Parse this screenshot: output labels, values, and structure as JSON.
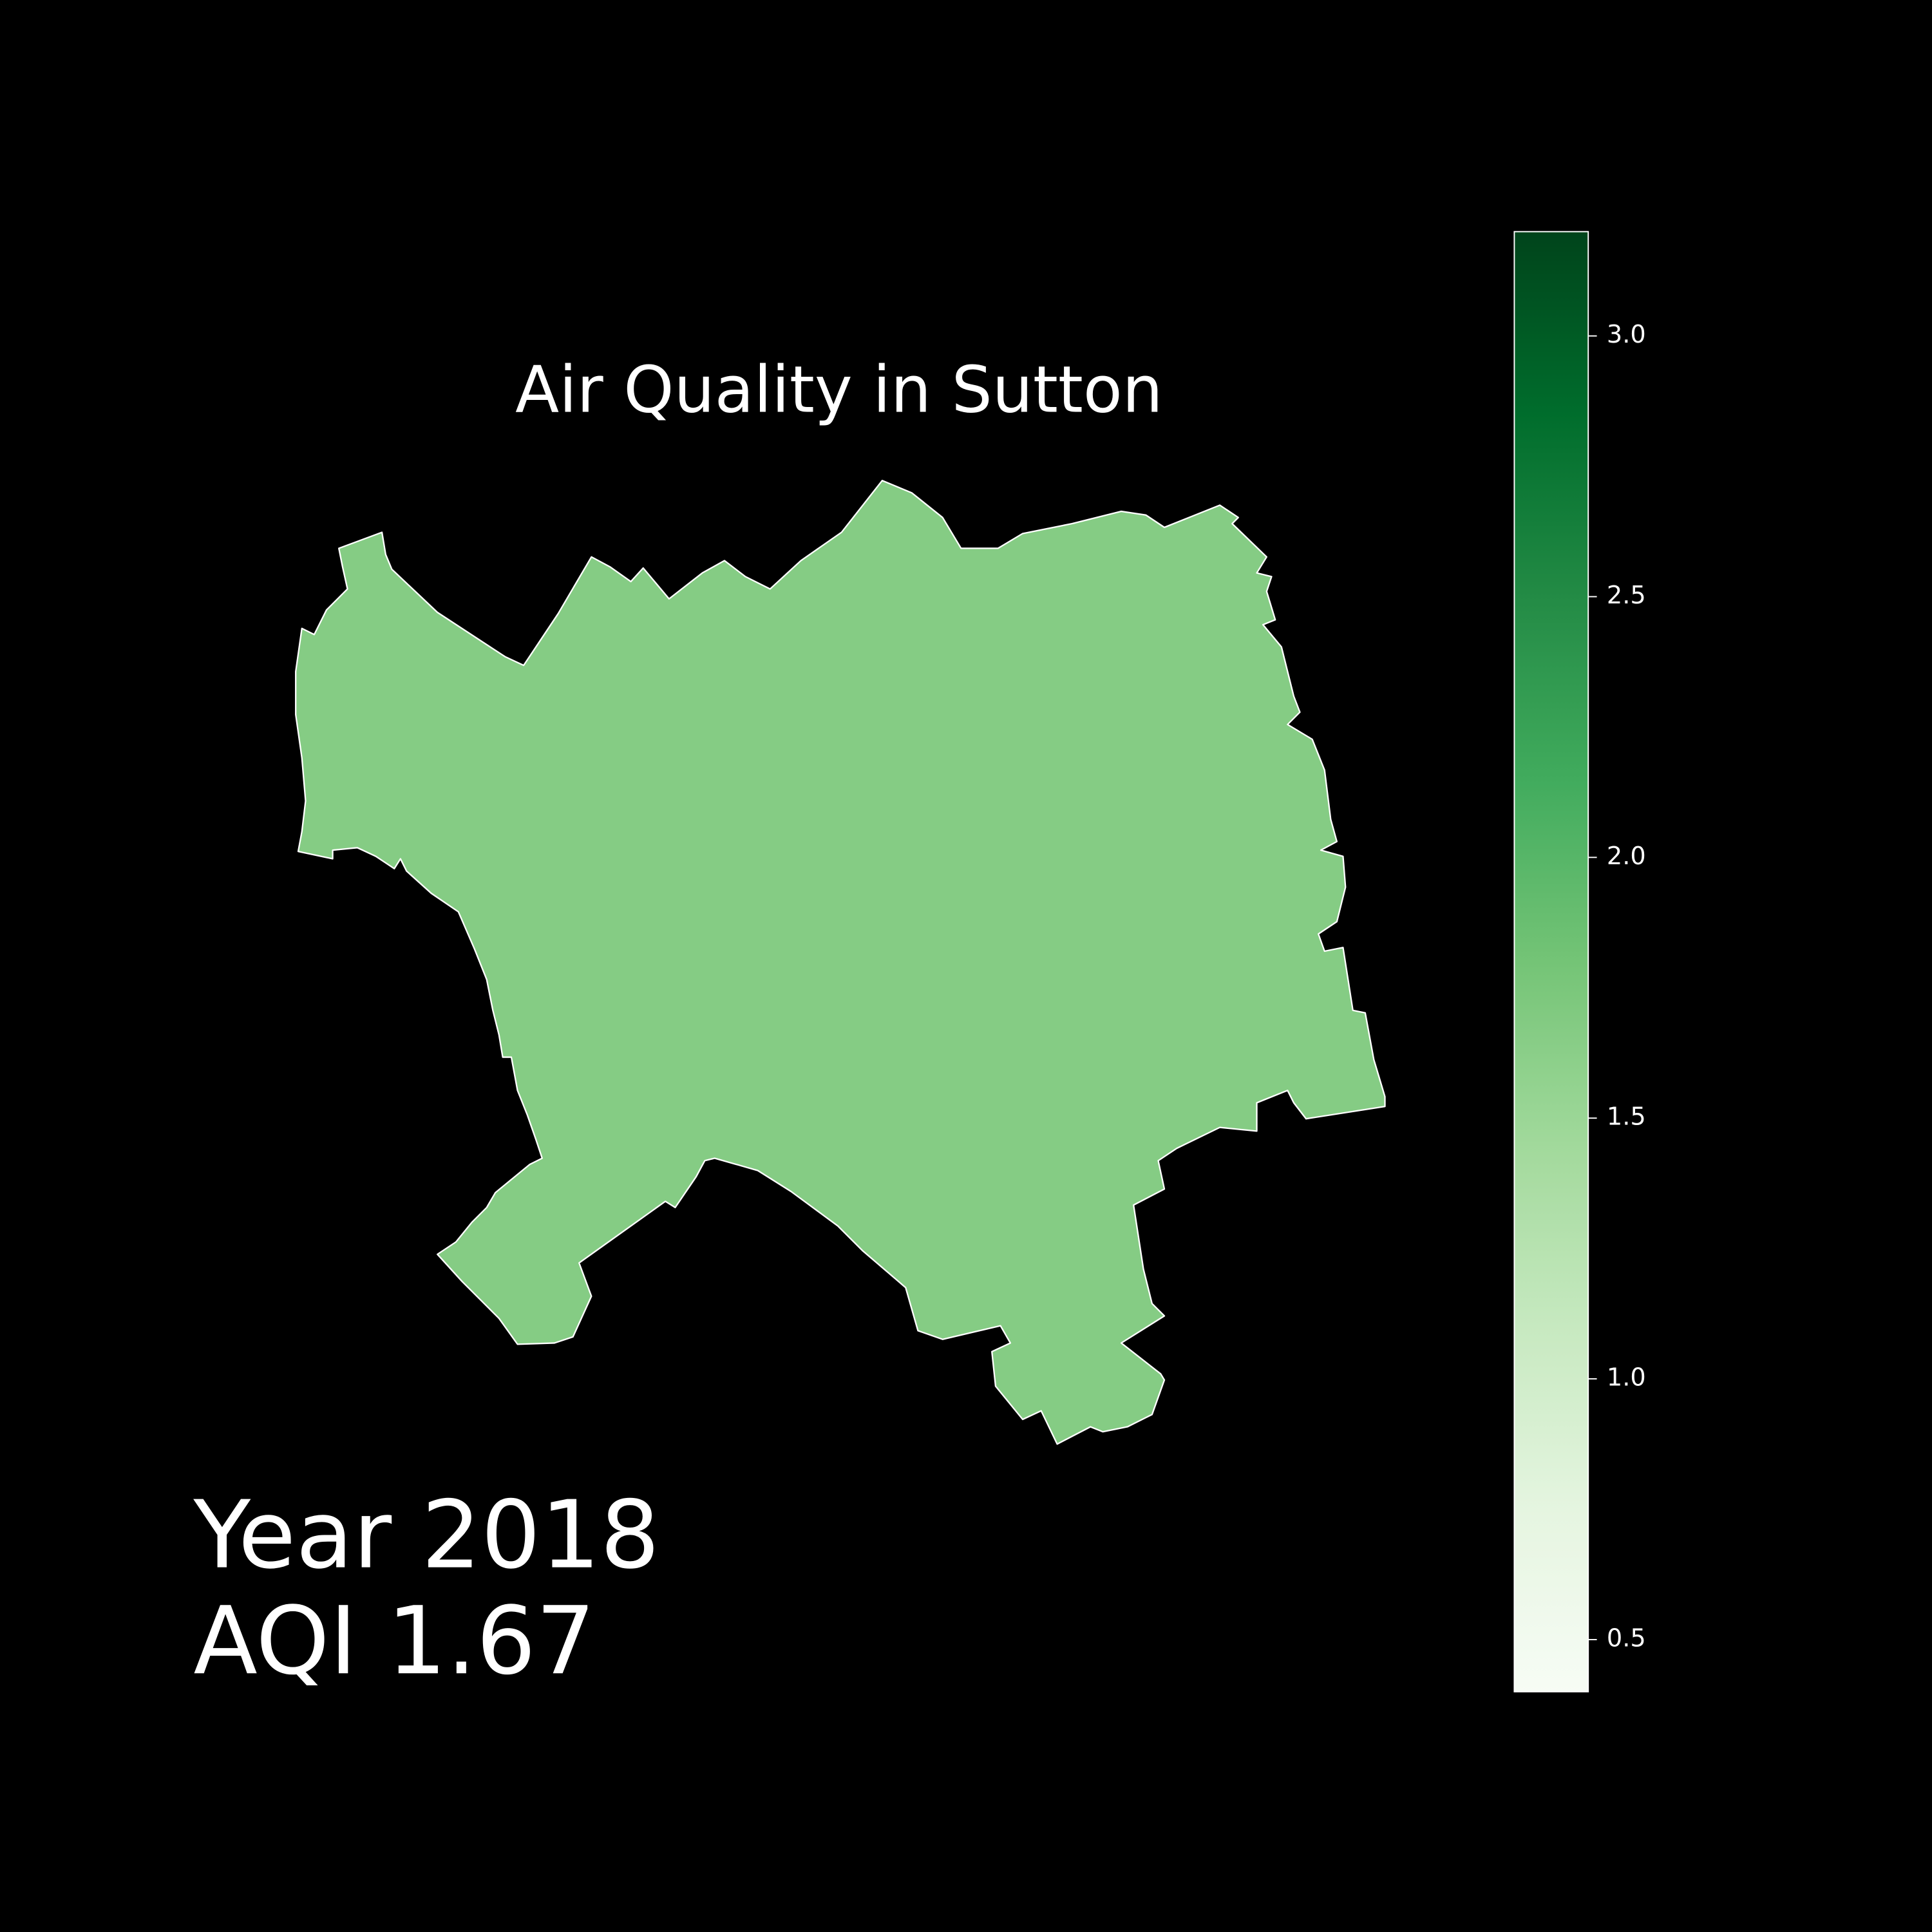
{
  "chart_data": {
    "type": "choropleth",
    "title": "Air Quality in Sutton",
    "year_label": "Year 2018",
    "values": [
      1.67
    ],
    "value_labels": [
      "AQI 1.67"
    ],
    "colormap": "Greens",
    "colorbar": {
      "lim": [
        0.4,
        3.2
      ],
      "ticks": [
        0.5,
        {
          "value": 1,
          "label": "1.0"
        },
        1.5,
        {
          "value": 2,
          "label": "2.0"
        },
        2.5,
        {
          "value": 3,
          "label": "3.0"
        }
      ]
    }
  }
}
